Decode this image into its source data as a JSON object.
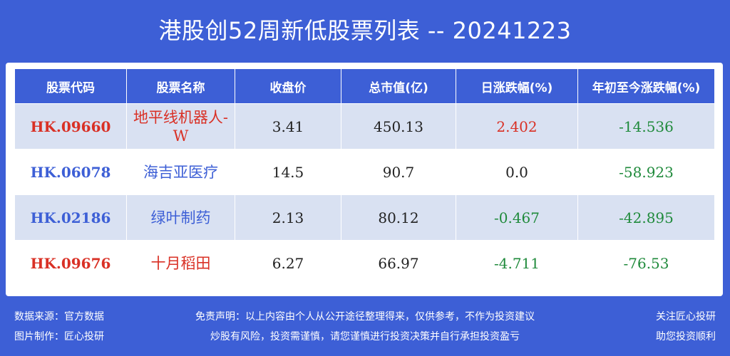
{
  "title": "港股创52周新低股票列表 -- 20241223",
  "colors": {
    "background": "#3d5fd6",
    "row_shade": "#d9e1f2",
    "up": "#d93025",
    "down": "#1f8a3b",
    "code_blue": "#3d5fd6"
  },
  "table": {
    "headers": [
      "股票代码",
      "股票名称",
      "收盘价",
      "总市值(亿)",
      "日涨跌幅(%)",
      "年初至今涨跌幅(%)"
    ],
    "rows": [
      {
        "code": "HK.09660",
        "name": "地平线机器人-W",
        "close": "3.41",
        "mcap": "450.13",
        "day": "2.402",
        "ytd": "-14.536",
        "code_color": "red",
        "day_color": "red",
        "ytd_color": "green"
      },
      {
        "code": "HK.06078",
        "name": "海吉亚医疗",
        "close": "14.5",
        "mcap": "90.7",
        "day": "0.0",
        "ytd": "-58.923",
        "code_color": "blue",
        "day_color": "black",
        "ytd_color": "green"
      },
      {
        "code": "HK.02186",
        "name": "绿叶制药",
        "close": "2.13",
        "mcap": "80.12",
        "day": "-0.467",
        "ytd": "-42.895",
        "code_color": "blue",
        "day_color": "green",
        "ytd_color": "green"
      },
      {
        "code": "HK.09676",
        "name": "十月稻田",
        "close": "6.27",
        "mcap": "66.97",
        "day": "-4.711",
        "ytd": "-76.53",
        "code_color": "red",
        "day_color": "green",
        "ytd_color": "green"
      }
    ]
  },
  "footer": {
    "source": "数据来源：官方数据",
    "maker": "图片制作：匠心投研",
    "disclaimer1": "免责声明：以上内容由个人从公开途径整理得来，仅供参考，不作为投资建议",
    "disclaimer2": "炒股有风险，投资需谨慎，请您谨慎进行投资决策并自行承担投资盈亏",
    "follow": "关注匠心投研",
    "help": "助您投资顺利"
  }
}
